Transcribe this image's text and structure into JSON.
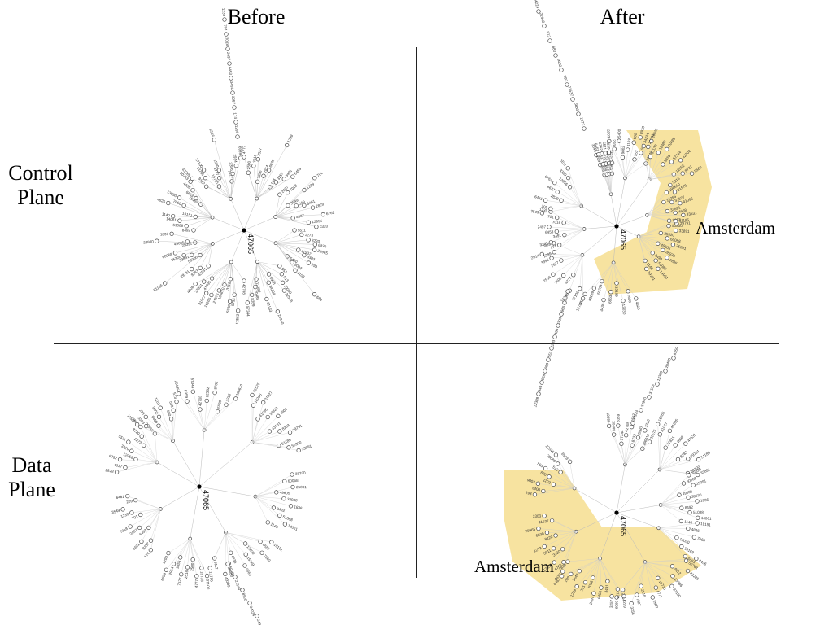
{
  "headers": {
    "before": "Before",
    "after": "After"
  },
  "rows": {
    "control": {
      "line1": "Control",
      "line2": "Plane"
    },
    "data": {
      "line1": "Data",
      "line2": "Plane"
    }
  },
  "root_asn": "47065",
  "highlight": {
    "label": "Amsterdam",
    "color": "#f7e3a0"
  },
  "panels": [
    {
      "id": "control-before",
      "layout": "ring",
      "root_label": "47065",
      "leaf_labels": [
        "4777",
        "2500",
        "2516",
        "7527",
        "3356",
        "2914",
        "6939",
        "1299",
        "174",
        "3257",
        "3491",
        "6453",
        "2497",
        "7018",
        "701",
        "1239",
        "3549",
        "209",
        "6461",
        "2828",
        "4637",
        "6762",
        "12956",
        "3320",
        "5511",
        "1273",
        "8220",
        "6830",
        "20965",
        "11537",
        "3303",
        "293",
        "5400",
        "9002",
        "1103",
        "680",
        "553",
        "513",
        "20080",
        "22548",
        "8928",
        "34224",
        "24940",
        "31133",
        "12389",
        "20485",
        "8359",
        "57344",
        "42708",
        "12552",
        "8732",
        "5580",
        "3216",
        "196610",
        "21575",
        "16265",
        "31027",
        "41095",
        "37821",
        "4608",
        "43531",
        "8283",
        "29791",
        "51185",
        "50300",
        "33891",
        "35320",
        "60068",
        "25091",
        "49605",
        "38930",
        "1836",
        "8492",
        "51088",
        "14061",
        "1140",
        "19151",
        "4826",
        "7660",
        "13030",
        "15169",
        "6663",
        "4436",
        "50763",
        "43289",
        "9112",
        "13786",
        "37100",
        "16735"
      ]
    },
    {
      "id": "control-after",
      "layout": "tree",
      "root_label": "47065",
      "leaf_labels": [
        "4777",
        "2500",
        "2516",
        "7527",
        "3356",
        "2914",
        "6939",
        "1299",
        "174",
        "3257",
        "3491",
        "6453",
        "2497",
        "7018",
        "701",
        "1239",
        "3549",
        "209",
        "6461",
        "2828",
        "4637",
        "6762",
        "12956",
        "3320",
        "5511",
        "1273",
        "8220",
        "6830",
        "20965",
        "11537",
        "3303",
        "293",
        "5400",
        "9002",
        "1103",
        "680",
        "553",
        "513",
        "20080",
        "22548",
        "8928",
        "34224",
        "24940",
        "31133",
        "12389",
        "20485",
        "8359",
        "57344",
        "42708",
        "12552",
        "8732",
        "5580",
        "3216",
        "196610",
        "21575",
        "16265",
        "31027",
        "41095",
        "37821",
        "4608",
        "43531",
        "8283",
        "29791",
        "51185",
        "50300",
        "33891",
        "35320",
        "60068",
        "25091",
        "49605",
        "38930",
        "1836",
        "8492",
        "51088",
        "14061",
        "1140",
        "19151",
        "4826",
        "7660",
        "13030",
        "15169",
        "6663",
        "4436",
        "50763",
        "43289",
        "9112",
        "13786",
        "37100",
        "16735"
      ]
    },
    {
      "id": "data-before",
      "layout": "tree",
      "root_label": "47065",
      "leaf_labels": [
        "4777",
        "2500",
        "2516",
        "7527",
        "3356",
        "2914",
        "6939",
        "1299",
        "174",
        "3257",
        "3491",
        "6453",
        "2497",
        "7018",
        "701",
        "1239",
        "3549",
        "209",
        "6461",
        "2828",
        "4637",
        "6762",
        "12956",
        "3320",
        "5511",
        "1273",
        "8220",
        "6830",
        "20965",
        "11537",
        "3303",
        "293",
        "5400",
        "9002",
        "1103",
        "680",
        "553",
        "513",
        "20080",
        "22548",
        "8928",
        "34224",
        "24940",
        "31133",
        "12389",
        "20485",
        "8359",
        "57344",
        "42708",
        "12552",
        "8732",
        "5580",
        "3216",
        "196610",
        "21575",
        "16265",
        "31027",
        "41095",
        "37821",
        "4608",
        "43531",
        "8283",
        "29791",
        "51185",
        "50300",
        "33891",
        "35320",
        "60068",
        "25091",
        "49605",
        "38930",
        "1836",
        "8492",
        "51088",
        "14061",
        "1140",
        "19151",
        "4826",
        "7660",
        "13030",
        "15169",
        "6663",
        "4436",
        "50763",
        "43289",
        "9112",
        "13786",
        "37100",
        "16735"
      ]
    },
    {
      "id": "data-after",
      "layout": "tree",
      "root_label": "47065",
      "leaf_labels": [
        "4777",
        "2500",
        "2516",
        "7527",
        "3356",
        "2914",
        "6939",
        "1299",
        "174",
        "3257",
        "3491",
        "6453",
        "2497",
        "7018",
        "701",
        "1239",
        "3549",
        "209",
        "6461",
        "2828",
        "4637",
        "6762",
        "12956",
        "3320",
        "5511",
        "1273",
        "8220",
        "6830",
        "20965",
        "11537",
        "3303",
        "293",
        "5400",
        "9002",
        "1103",
        "680",
        "553",
        "513",
        "20080",
        "22548",
        "8928",
        "34224",
        "24940",
        "31133",
        "12389",
        "20485",
        "8359",
        "57344",
        "42708",
        "12552",
        "8732",
        "5580",
        "3216",
        "196610",
        "21575",
        "16265",
        "31027",
        "41095",
        "37821",
        "4608",
        "43531",
        "8283",
        "29791",
        "51185",
        "50300",
        "33891",
        "35320",
        "60068",
        "25091",
        "49605",
        "38930",
        "1836",
        "8492",
        "51088",
        "14061",
        "1140",
        "19151",
        "4826",
        "7660",
        "13030",
        "15169",
        "6663",
        "4436",
        "50763",
        "43289",
        "9112",
        "13786",
        "37100",
        "16735"
      ]
    }
  ]
}
